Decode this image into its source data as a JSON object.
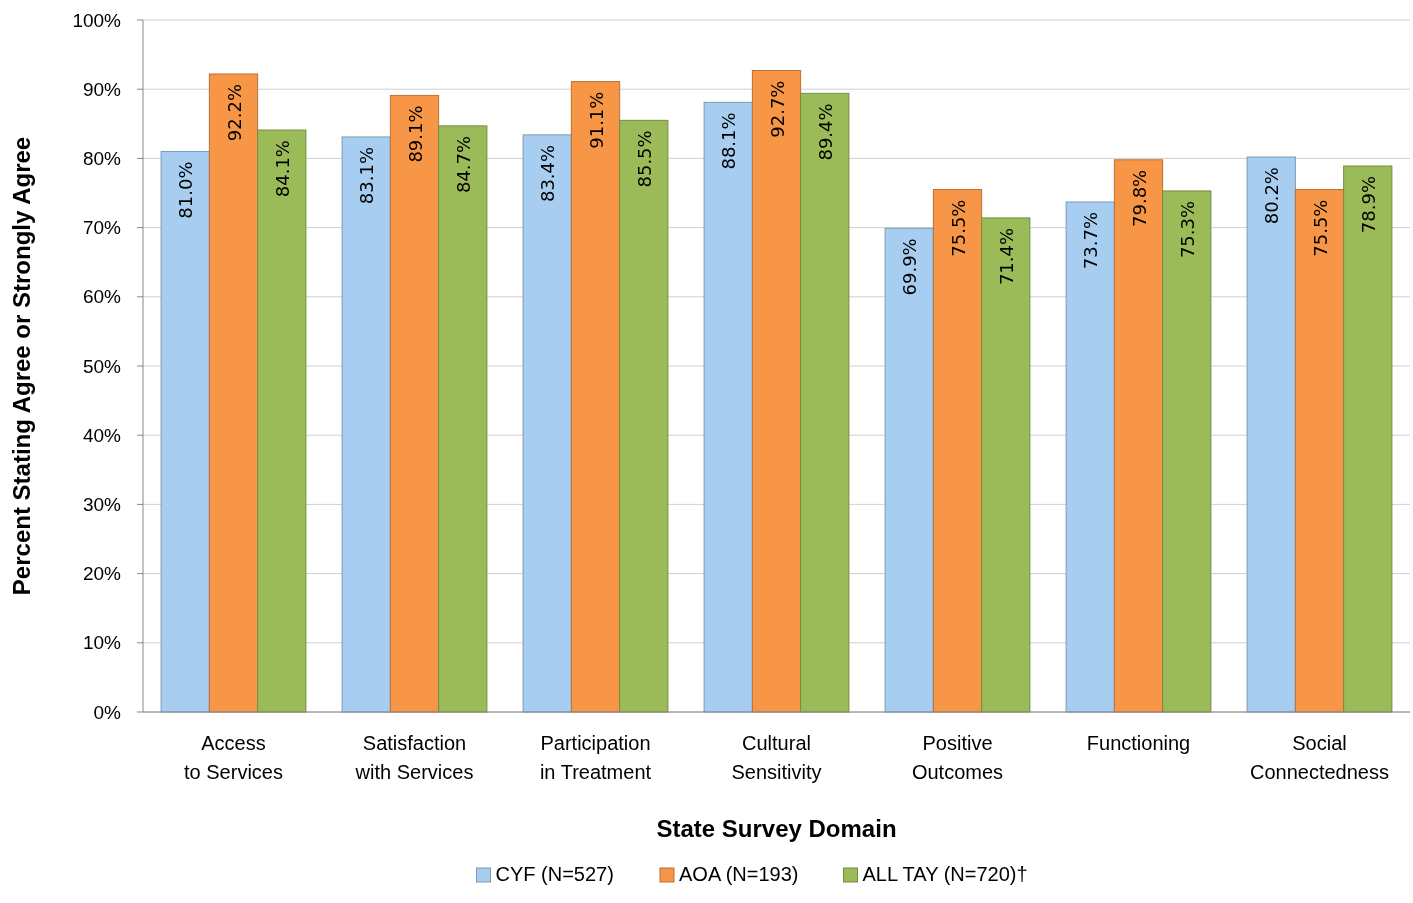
{
  "chart_data": {
    "type": "bar",
    "xlabel": "State Survey Domain",
    "ylabel": "Percent Stating Agree or Strongly Agree",
    "categories": [
      "Access\nto Services",
      "Satisfaction\nwith Services",
      "Participation\nin Treatment",
      "Cultural\nSensitivity",
      "Positive\nOutcomes",
      "Functioning",
      "Social\nConnectedness"
    ],
    "series": [
      {
        "name": "CYF (N=527)",
        "color": "#a7cdf0",
        "values": [
          81.0,
          83.1,
          83.4,
          88.1,
          69.9,
          73.7,
          80.2
        ],
        "value_labels": [
          "81.0%",
          "83.1%",
          "83.4%",
          "88.1%",
          "69.9%",
          "73.7%",
          "80.2%"
        ]
      },
      {
        "name": "AOA (N=193)",
        "color": "#f79646",
        "values": [
          92.2,
          89.1,
          91.1,
          92.7,
          75.5,
          79.8,
          75.5
        ],
        "value_labels": [
          "92.2%",
          "89.1%",
          "91.1%",
          "92.7%",
          "75.5%",
          "79.8%",
          "75.5%"
        ]
      },
      {
        "name": "ALL TAY (N=720)†",
        "color": "#9bbb59",
        "values": [
          84.1,
          84.7,
          85.5,
          89.4,
          71.4,
          75.3,
          78.9
        ],
        "value_labels": [
          "84.1%",
          "84.7%",
          "85.5%",
          "89.4%",
          "71.4%",
          "75.3%",
          "78.9%"
        ]
      }
    ],
    "ylim": [
      0,
      100
    ],
    "yticks": [
      {
        "value": 0,
        "label": "0%"
      },
      {
        "value": 10,
        "label": "10%"
      },
      {
        "value": 20,
        "label": "20%"
      },
      {
        "value": 30,
        "label": "30%"
      },
      {
        "value": 40,
        "label": "40%"
      },
      {
        "value": 50,
        "label": "50%"
      },
      {
        "value": 60,
        "label": "60%"
      },
      {
        "value": 70,
        "label": "70%"
      },
      {
        "value": 80,
        "label": "80%"
      },
      {
        "value": 90,
        "label": "90%"
      },
      {
        "value": 100,
        "label": "100%"
      }
    ],
    "grid": "y",
    "legend": "bottom"
  }
}
